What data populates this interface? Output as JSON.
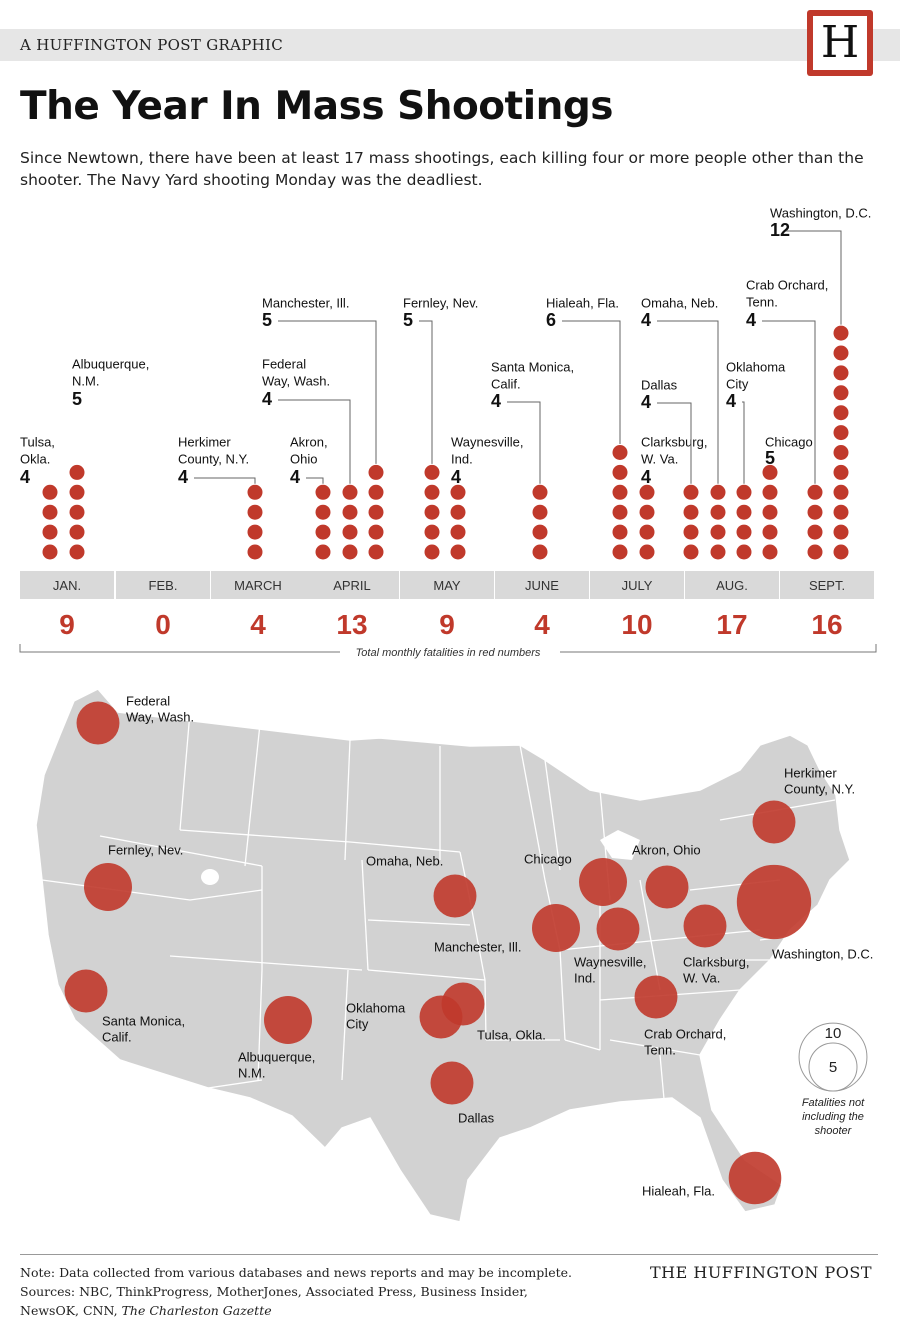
{
  "header": {
    "kicker": "A HUFFINGTON POST GRAPHIC",
    "logo_letter": "H",
    "title": "The Year In Mass Shootings",
    "subtitle": "Since Newtown, there have been at least 17 mass shootings, each killing four or more people other than the shooter. The Navy Yard shooting Monday was the deadliest."
  },
  "chart_data": [
    {
      "type": "bar",
      "categories": [
        "JAN.",
        "FEB.",
        "MARCH",
        "APRIL",
        "MAY",
        "JUNE",
        "JULY",
        "AUG.",
        "SEPT."
      ],
      "values": [
        9,
        0,
        4,
        13,
        9,
        4,
        10,
        17,
        16
      ],
      "caption": "Total monthly fatalities in red numbers",
      "colors": {
        "accent": "#c0392b",
        "month_bar": "#d9d9d9"
      },
      "incidents": [
        {
          "city": "Tulsa, Okla.",
          "month": "JAN.",
          "fatalities": 4
        },
        {
          "city": "Albuquerque, N.M.",
          "month": "JAN.",
          "fatalities": 5
        },
        {
          "city": "Herkimer County, N.Y.",
          "month": "MARCH",
          "fatalities": 4
        },
        {
          "city": "Akron, Ohio",
          "month": "APRIL",
          "fatalities": 4
        },
        {
          "city": "Federal Way, Wash.",
          "month": "APRIL",
          "fatalities": 4
        },
        {
          "city": "Manchester, Ill.",
          "month": "APRIL",
          "fatalities": 5
        },
        {
          "city": "Fernley, Nev.",
          "month": "MAY",
          "fatalities": 5
        },
        {
          "city": "Waynesville, Ind.",
          "month": "MAY",
          "fatalities": 4
        },
        {
          "city": "Santa Monica, Calif.",
          "month": "JUNE",
          "fatalities": 4
        },
        {
          "city": "Hialeah, Fla.",
          "month": "JULY",
          "fatalities": 6
        },
        {
          "city": "Clarksburg, W. Va.",
          "month": "JULY",
          "fatalities": 4
        },
        {
          "city": "Dallas",
          "month": "AUG.",
          "fatalities": 4
        },
        {
          "city": "Omaha, Neb.",
          "month": "AUG.",
          "fatalities": 4
        },
        {
          "city": "Oklahoma City",
          "month": "AUG.",
          "fatalities": 4
        },
        {
          "city": "Chicago",
          "month": "AUG.",
          "fatalities": 5
        },
        {
          "city": "Crab Orchard, Tenn.",
          "month": "SEPT.",
          "fatalities": 4
        },
        {
          "city": "Washington, D.C.",
          "month": "SEPT.",
          "fatalities": 12
        }
      ]
    },
    {
      "type": "bubble-map",
      "legend": {
        "sizes": [
          10,
          5
        ],
        "caption": "Fatalities not including the shooter"
      },
      "points": [
        {
          "city": "Federal Way, Wash.",
          "fatalities": 4
        },
        {
          "city": "Fernley, Nev.",
          "fatalities": 5
        },
        {
          "city": "Santa Monica, Calif.",
          "fatalities": 4
        },
        {
          "city": "Albuquerque, N.M.",
          "fatalities": 5
        },
        {
          "city": "Omaha, Neb.",
          "fatalities": 4
        },
        {
          "city": "Oklahoma City",
          "fatalities": 4
        },
        {
          "city": "Tulsa, Okla.",
          "fatalities": 4
        },
        {
          "city": "Dallas",
          "fatalities": 4
        },
        {
          "city": "Manchester, Ill.",
          "fatalities": 5
        },
        {
          "city": "Chicago",
          "fatalities": 5
        },
        {
          "city": "Waynesville, Ind.",
          "fatalities": 4
        },
        {
          "city": "Akron, Ohio",
          "fatalities": 4
        },
        {
          "city": "Clarksburg, W. Va.",
          "fatalities": 4
        },
        {
          "city": "Crab Orchard, Tenn.",
          "fatalities": 4
        },
        {
          "city": "Herkimer County, N.Y.",
          "fatalities": 4
        },
        {
          "city": "Washington, D.C.",
          "fatalities": 12
        },
        {
          "city": "Hialeah, Fla.",
          "fatalities": 6
        }
      ]
    }
  ],
  "footer": {
    "note": "Note: Data collected from various databases and news reports and may be incomplete.",
    "sources_prefix": "Sources: NBC, ThinkProgress, MotherJones, Associated Press, Business Insider, NewsOK, CNN, ",
    "sources_italic": "The Charleston Gazette",
    "brand": "THE HUFFINGTON POST"
  }
}
